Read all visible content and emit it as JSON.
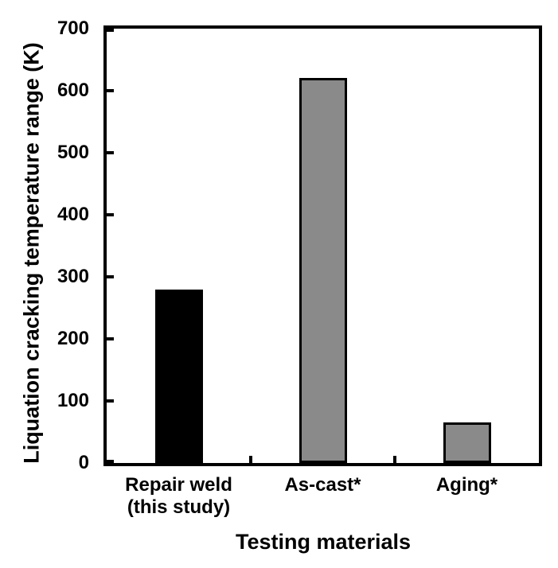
{
  "figure": {
    "background_color": "#ffffff",
    "text_color": "#000000",
    "axis_color": "#000000"
  },
  "chart_data": {
    "type": "bar",
    "title": "",
    "xlabel": "Testing materials",
    "ylabel": "Liquation cracking temperature range (K)",
    "categories": [
      "Repair weld (this study)",
      "As-cast*",
      "Aging*"
    ],
    "category_label_lines": [
      [
        "Repair weld",
        "(this study)"
      ],
      [
        "As-cast*"
      ],
      [
        "Aging*"
      ]
    ],
    "values": [
      280,
      620,
      65
    ],
    "ylim": [
      0,
      700
    ],
    "yticks": [
      0,
      100,
      200,
      300,
      400,
      500,
      600,
      700
    ],
    "grid": false,
    "legend": null,
    "tick_direction": "in",
    "frame": true,
    "bar_fill_colors": [
      "#000000",
      "#8a8a8a",
      "#8a8a8a"
    ],
    "bar_border_color": "#000000",
    "bar_border_width_px": 3
  }
}
